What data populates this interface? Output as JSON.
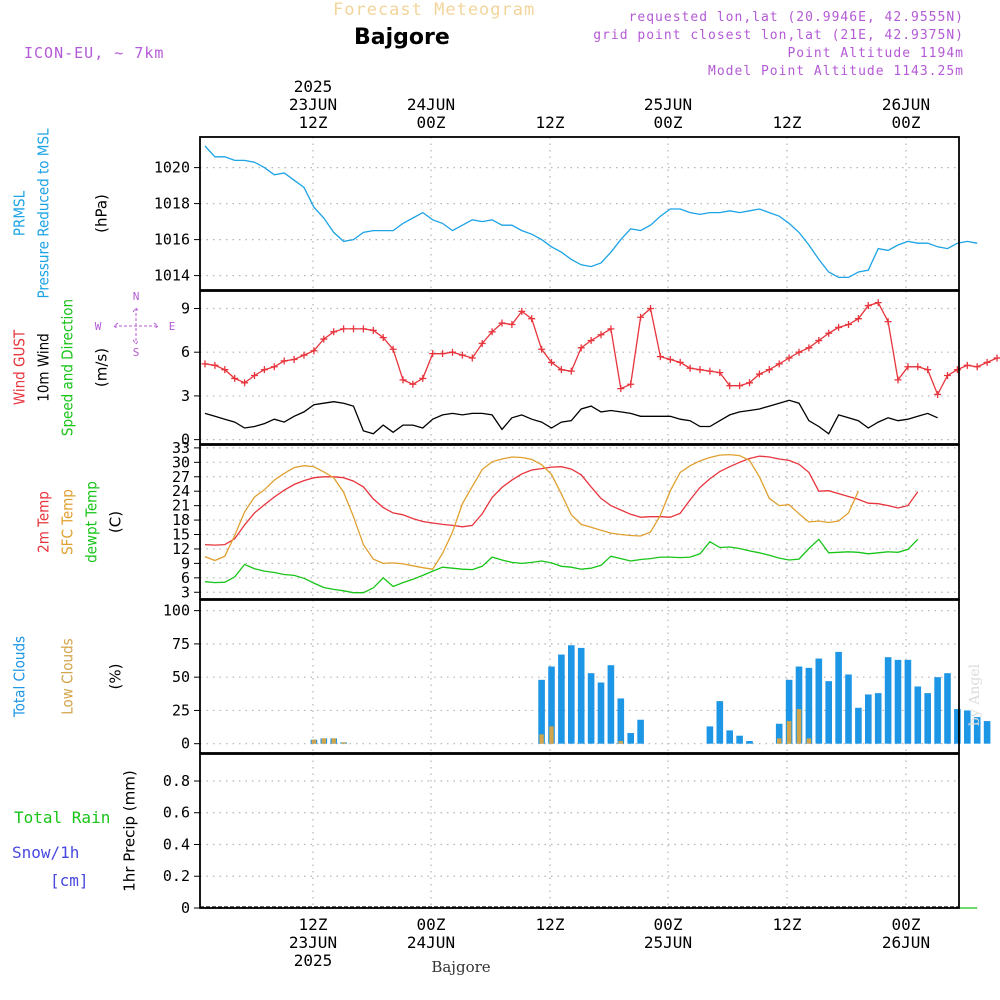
{
  "header": {
    "product_title": "Forecast Meteogram",
    "location": "Bajgore",
    "model": "ICON-EU, ~ 7km",
    "requested_point": "requested lon,lat (20.9946E, 42.9555N)",
    "grid_point": "grid point closest lon,lat (21E, 42.9375N)",
    "point_altitude": "Point Altitude 1194m",
    "model_altitude": "Model Point Altitude 1143.25m",
    "footer_location": "Bajgore",
    "signature": "by Angel"
  },
  "time_axis": {
    "top_ticks": [
      {
        "lines": [
          "2025",
          "23JUN",
          "12Z"
        ]
      },
      {
        "lines": [
          "24JUN",
          "00Z"
        ]
      },
      {
        "lines": [
          "12Z"
        ]
      },
      {
        "lines": [
          "25JUN",
          "00Z"
        ]
      },
      {
        "lines": [
          "12Z"
        ]
      },
      {
        "lines": [
          "26JUN",
          "00Z"
        ]
      }
    ],
    "bottom_ticks": [
      {
        "lines": [
          "12Z",
          "23JUN",
          "2025"
        ]
      },
      {
        "lines": [
          "00Z",
          "24JUN"
        ]
      },
      {
        "lines": [
          "12Z"
        ]
      },
      {
        "lines": [
          "00Z",
          "25JUN"
        ]
      },
      {
        "lines": [
          "12Z"
        ]
      },
      {
        "lines": [
          "00Z",
          "26JUN"
        ]
      }
    ]
  },
  "colors": {
    "pressure": "#1ba3e6",
    "gust": "#e8343c",
    "wind": "#000000",
    "temp2m": "#e8343c",
    "sfc_temp": "#e0a030",
    "dewpt": "#18c418",
    "total_clouds": "#1e96e6",
    "low_clouds": "#d2a54b",
    "rain": "#18c418",
    "snow": "#4848e0",
    "grid": "#b4b4b4"
  },
  "chart_data": [
    {
      "type": "line",
      "panel": "pressure",
      "label_lines": [
        {
          "text": "PRMSL",
          "color": "pressure"
        },
        {
          "text": "Pressure Reduced to MSL",
          "color": "pressure"
        }
      ],
      "unit": "(hPa)",
      "ylim": [
        1013.2,
        1021.7
      ],
      "yticks": [
        1014,
        1016,
        1018,
        1020
      ],
      "x_start": 0,
      "x_step": 1,
      "series": [
        {
          "name": "PRMSL",
          "values": [
            1021.2,
            1020.6,
            1020.6,
            1020.4,
            1020.4,
            1020.3,
            1020.0,
            1019.6,
            1019.7,
            1019.3,
            1018.9,
            1017.8,
            1017.2,
            1016.4,
            1015.9,
            1016.0,
            1016.4,
            1016.5,
            1016.5,
            1016.5,
            1016.9,
            1017.2,
            1017.5,
            1017.1,
            1016.9,
            1016.5,
            1016.8,
            1017.1,
            1017.0,
            1017.1,
            1016.8,
            1016.8,
            1016.5,
            1016.3,
            1016.0,
            1015.6,
            1015.3,
            1014.9,
            1014.6,
            1014.5,
            1014.7,
            1015.3,
            1016.0,
            1016.6,
            1016.5,
            1016.8,
            1017.3,
            1017.7,
            1017.7,
            1017.5,
            1017.4,
            1017.5,
            1017.5,
            1017.6,
            1017.5,
            1017.6,
            1017.7,
            1017.5,
            1017.3,
            1016.9,
            1016.4,
            1015.7,
            1014.9,
            1014.2,
            1013.9,
            1013.9,
            1014.2,
            1014.3,
            1015.5,
            1015.4,
            1015.7,
            1015.9,
            1015.8,
            1015.8,
            1015.6,
            1015.5,
            1015.8,
            1015.9,
            1015.8
          ]
        }
      ]
    },
    {
      "type": "line",
      "panel": "wind",
      "label_lines": [
        {
          "text": "Wind GUST",
          "color": "gust"
        },
        {
          "text": "10m Wind",
          "color": "wind"
        },
        {
          "text": "Speed and Direction",
          "color": "dewpt"
        }
      ],
      "unit": "(m/s)",
      "compass": {
        "n": "N",
        "s": "S",
        "e": "E",
        "w": "W"
      },
      "ylim": [
        -0.3,
        10.2
      ],
      "yticks": [
        0,
        3,
        6,
        9
      ],
      "x_start": 0,
      "x_step": 1,
      "series": [
        {
          "name": "Wind GUST",
          "values": [
            5.2,
            5.1,
            4.8,
            4.2,
            3.9,
            4.4,
            4.8,
            5.0,
            5.4,
            5.5,
            5.8,
            6.1,
            6.9,
            7.4,
            7.6,
            7.6,
            7.6,
            7.5,
            7.0,
            6.2,
            4.1,
            3.8,
            4.2,
            5.9,
            5.9,
            6.0,
            5.8,
            5.6,
            6.6,
            7.4,
            8.0,
            7.9,
            8.8,
            8.3,
            6.2,
            5.3,
            4.8,
            4.7,
            6.3,
            6.8,
            7.2,
            7.6,
            3.5,
            3.8,
            8.4,
            9.0,
            5.7,
            5.5,
            5.3,
            4.9,
            4.8,
            4.7,
            4.6,
            3.7,
            3.7,
            3.9,
            4.5,
            4.8,
            5.2,
            5.6,
            6.0,
            6.3,
            6.8,
            7.3,
            7.7,
            7.9,
            8.3,
            9.2,
            9.4,
            8.1,
            4.1,
            5.0,
            5.0,
            4.8,
            3.1,
            4.4,
            4.8,
            5.1,
            5.0,
            5.3,
            5.6,
            5.6
          ]
        },
        {
          "name": "10m Wind",
          "values": [
            1.8,
            1.6,
            1.4,
            1.2,
            0.8,
            0.9,
            1.1,
            1.4,
            1.2,
            1.6,
            1.9,
            2.4,
            2.5,
            2.6,
            2.5,
            2.3,
            0.6,
            0.4,
            1.0,
            0.5,
            1.0,
            1.0,
            0.8,
            1.4,
            1.7,
            1.8,
            1.7,
            1.8,
            1.8,
            1.7,
            0.7,
            1.5,
            1.7,
            1.4,
            1.2,
            0.8,
            1.2,
            1.3,
            2.1,
            2.3,
            1.9,
            2.0,
            1.9,
            1.8,
            1.6,
            1.6,
            1.6,
            1.6,
            1.4,
            1.3,
            0.9,
            0.9,
            1.3,
            1.7,
            1.9,
            2.0,
            2.1,
            2.3,
            2.5,
            2.7,
            2.5,
            1.3,
            0.9,
            0.4,
            1.7,
            1.5,
            1.3,
            0.8,
            1.2,
            1.5,
            1.3,
            1.4,
            1.6,
            1.8,
            1.5
          ]
        }
      ]
    },
    {
      "type": "line",
      "panel": "temperature",
      "label_lines": [
        {
          "text": "2m Temp",
          "color": "temp2m"
        },
        {
          "text": "SFC Temp",
          "color": "sfc_temp"
        },
        {
          "text": "dewpt Temp",
          "color": "dewpt"
        }
      ],
      "unit": "(C)",
      "ylim": [
        1.6,
        33.6
      ],
      "yticks": [
        3,
        6,
        9,
        12,
        15,
        18,
        21,
        24,
        27,
        30,
        33
      ],
      "x_start": 0,
      "x_step": 1,
      "series": [
        {
          "name": "2m Temp",
          "values": [
            12.9,
            12.8,
            12.9,
            14.1,
            17.0,
            19.5,
            21.2,
            22.8,
            24.2,
            25.4,
            26.2,
            26.8,
            27.0,
            27.0,
            26.8,
            26.1,
            24.9,
            22.4,
            20.6,
            19.5,
            19.1,
            18.3,
            17.7,
            17.4,
            17.1,
            16.9,
            16.6,
            16.9,
            19.3,
            22.7,
            24.8,
            26.3,
            27.6,
            28.4,
            28.7,
            29.0,
            29.1,
            28.6,
            27.4,
            24.9,
            22.5,
            21.0,
            20.1,
            19.2,
            18.6,
            18.7,
            18.7,
            18.6,
            19.4,
            22.2,
            24.8,
            26.6,
            28.1,
            29.1,
            30.0,
            30.8,
            31.3,
            31.1,
            30.7,
            30.4,
            29.6,
            27.9,
            24.0,
            24.1,
            23.5,
            22.9,
            22.3,
            21.5,
            21.4,
            21.0,
            20.5,
            21.0,
            23.9
          ]
        },
        {
          "name": "SFC Temp",
          "values": [
            10.4,
            9.6,
            10.5,
            14.8,
            19.7,
            22.8,
            24.3,
            26.3,
            27.7,
            28.9,
            29.3,
            29.1,
            28.0,
            26.8,
            23.8,
            18.7,
            12.9,
            9.9,
            9.0,
            9.1,
            8.9,
            8.5,
            8.1,
            7.8,
            11.1,
            15.5,
            21.4,
            25.0,
            28.5,
            30.1,
            30.7,
            31.1,
            31.0,
            30.6,
            29.5,
            27.5,
            23.4,
            19.1,
            17.1,
            16.5,
            15.9,
            15.3,
            15.0,
            14.8,
            14.7,
            15.5,
            19.0,
            24.1,
            27.9,
            29.3,
            30.3,
            31.0,
            31.5,
            31.6,
            31.4,
            30.4,
            27.0,
            22.5,
            21.0,
            21.2,
            19.3,
            17.6,
            17.8,
            17.5,
            17.8,
            19.5,
            24.0
          ]
        },
        {
          "name": "dewpt Temp",
          "values": [
            5.2,
            5.0,
            5.1,
            6.2,
            8.8,
            7.9,
            7.4,
            7.1,
            6.7,
            6.5,
            5.9,
            4.9,
            4.0,
            3.6,
            3.3,
            2.9,
            2.9,
            3.9,
            6.0,
            4.2,
            5.0,
            5.7,
            6.5,
            7.4,
            8.2,
            8.0,
            7.8,
            7.7,
            8.4,
            10.3,
            9.7,
            9.2,
            9.0,
            9.2,
            9.5,
            9.1,
            8.4,
            8.2,
            7.8,
            8.0,
            8.6,
            10.5,
            10.0,
            9.5,
            9.8,
            10.0,
            10.3,
            10.3,
            10.2,
            10.3,
            11.0,
            13.5,
            12.3,
            12.4,
            12.1,
            11.6,
            11.2,
            10.7,
            10.1,
            9.7,
            9.9,
            12.1,
            14.0,
            11.2,
            11.3,
            11.4,
            11.3,
            11.0,
            11.2,
            11.4,
            11.3,
            11.9,
            14.0
          ]
        }
      ]
    },
    {
      "type": "bar",
      "panel": "clouds",
      "label_lines": [
        {
          "text": "Total Clouds",
          "color": "total_clouds"
        },
        {
          "text": "Low Clouds",
          "color": "low_clouds"
        }
      ],
      "unit": "(%)",
      "ylim": [
        -7,
        108
      ],
      "yticks": [
        0,
        25,
        50,
        75,
        100
      ],
      "x_start": 0,
      "x_step": 1,
      "series": [
        {
          "name": "Total Clouds",
          "values": [
            0,
            0,
            0,
            0,
            0,
            0,
            0,
            0,
            0,
            0,
            0,
            3,
            4,
            4,
            1,
            0,
            0,
            0,
            0,
            0,
            0,
            0,
            0,
            0,
            0,
            0,
            0,
            0,
            0,
            0,
            0,
            0,
            0,
            0,
            48,
            58,
            67,
            74,
            72,
            53,
            46,
            59,
            34,
            8,
            18,
            0,
            0,
            0,
            0,
            0,
            0,
            13,
            32,
            10,
            6,
            2,
            0,
            0,
            15,
            48,
            58,
            57,
            64,
            47,
            69,
            52,
            27,
            37,
            38,
            65,
            63,
            63,
            43,
            38,
            50,
            53,
            26,
            25,
            20,
            17
          ]
        },
        {
          "name": "Low Clouds",
          "values": [
            0,
            0,
            0,
            0,
            0,
            0,
            0,
            0,
            0,
            0,
            0,
            3,
            4,
            4,
            1,
            0,
            0,
            0,
            0,
            0,
            0,
            0,
            0,
            0,
            0,
            0,
            0,
            0,
            0,
            0,
            0,
            0,
            0,
            0,
            7,
            13,
            0,
            0,
            0,
            0,
            0,
            0,
            2,
            0,
            0,
            0,
            0,
            0,
            0,
            0,
            0,
            0,
            0,
            0,
            0,
            0,
            0,
            0,
            4,
            17,
            26,
            4,
            0,
            0,
            0,
            0,
            0,
            0,
            0,
            0,
            0,
            0,
            0,
            0,
            0,
            0,
            0,
            0,
            0,
            0
          ]
        }
      ]
    },
    {
      "type": "line",
      "panel": "precip",
      "label_lines": [
        {
          "text": "Total  Rain",
          "color": "rain"
        },
        {
          "text": "Snow/1h",
          "color": "snow"
        },
        {
          "text": "[cm]",
          "color": "snow"
        }
      ],
      "unit": "1hr Precip (mm)",
      "ylim": [
        0,
        0.97
      ],
      "yticks": [
        0,
        0.2,
        0.4,
        0.6,
        0.8
      ],
      "x_start": 0,
      "x_step": 1,
      "series": [
        {
          "name": "Total  Rain",
          "values": [
            0,
            0,
            0,
            0,
            0,
            0,
            0,
            0,
            0,
            0,
            0,
            0,
            0,
            0,
            0,
            0,
            0,
            0,
            0,
            0,
            0,
            0,
            0,
            0,
            0,
            0,
            0,
            0,
            0,
            0,
            0,
            0,
            0,
            0,
            0,
            0,
            0,
            0,
            0,
            0,
            0,
            0,
            0,
            0,
            0,
            0,
            0,
            0,
            0,
            0,
            0,
            0,
            0,
            0,
            0,
            0,
            0,
            0,
            0,
            0,
            0,
            0,
            0,
            0,
            0,
            0,
            0,
            0,
            0,
            0,
            0,
            0,
            0,
            0,
            0,
            0,
            0,
            0,
            0
          ]
        }
      ]
    }
  ]
}
